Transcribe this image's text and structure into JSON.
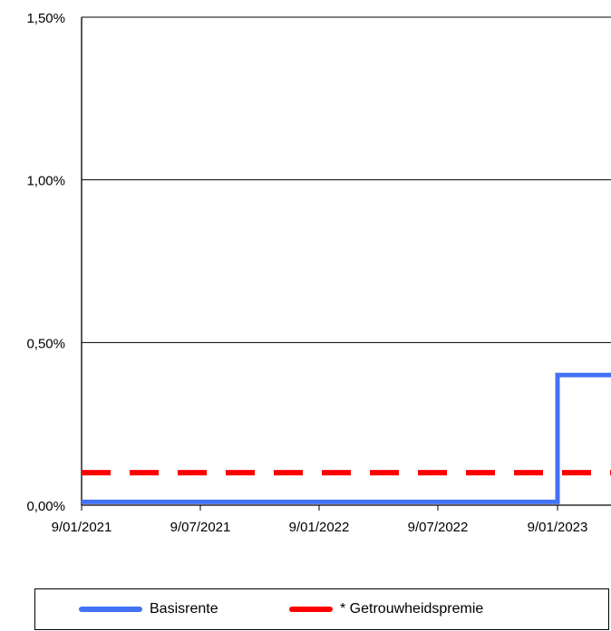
{
  "chart_data": {
    "type": "line",
    "title": "",
    "xlabel": "",
    "ylabel": "",
    "x_ticks": [
      "9/01/2021",
      "9/07/2021",
      "9/01/2022",
      "9/07/2022",
      "9/01/2023"
    ],
    "y_ticks": [
      "0,00%",
      "0,50%",
      "1,00%",
      "1,50%"
    ],
    "ylim": [
      0,
      1.5
    ],
    "grid": true,
    "step_lines": true,
    "legend_position": "bottom",
    "series": [
      {
        "name": "Basisrente",
        "color": "#4472f4",
        "style": "solid",
        "points": [
          {
            "x": "9/01/2021",
            "y": 0.01
          },
          {
            "x": "9/01/2023",
            "y": 0.01
          },
          {
            "x": "9/01/2023",
            "y": 0.4
          },
          {
            "x": "end",
            "y": 0.4
          }
        ]
      },
      {
        "name": "* Getrouwheidspremie",
        "color": "#ff0000",
        "style": "dashed",
        "points": [
          {
            "x": "9/01/2021",
            "y": 0.1
          },
          {
            "x": "end",
            "y": 0.1
          }
        ]
      }
    ]
  },
  "legend": {
    "items": [
      {
        "label": "Basisrente",
        "color": "#4472f4"
      },
      {
        "label": "* Getrouwheidspremie",
        "color": "#ff0000"
      }
    ]
  }
}
